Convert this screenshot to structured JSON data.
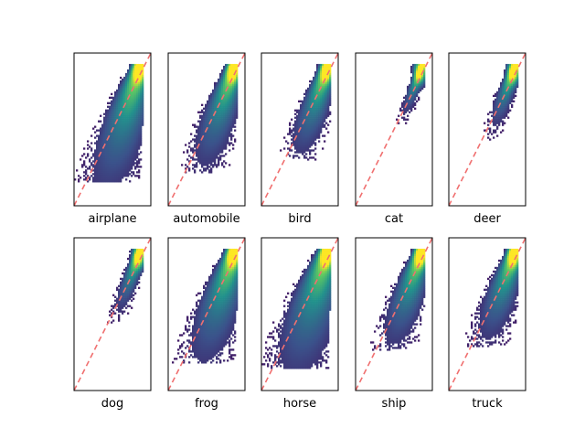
{
  "chart_data": {
    "type": "heatmap",
    "layout": {
      "rows": 2,
      "cols": 5
    },
    "axes_ticks": "none",
    "diagonal": {
      "style": "dashed",
      "color": "#f07070"
    },
    "colormap": [
      "#440154",
      "#3b528b",
      "#21918c",
      "#5ec962",
      "#fde725"
    ],
    "panels": [
      {
        "label": "airplane",
        "spread": 1.0,
        "width": 0.34,
        "tail": 0.72,
        "tilt": 0.55
      },
      {
        "label": "automobile",
        "spread": 0.8,
        "width": 0.3,
        "tail": 0.66,
        "tilt": 0.6
      },
      {
        "label": "bird",
        "spread": 0.7,
        "width": 0.28,
        "tail": 0.58,
        "tilt": 0.62
      },
      {
        "label": "cat",
        "spread": 0.35,
        "width": 0.16,
        "tail": 0.35,
        "tilt": 0.7
      },
      {
        "label": "deer",
        "spread": 0.45,
        "width": 0.2,
        "tail": 0.45,
        "tilt": 0.68
      },
      {
        "label": "dog",
        "spread": 0.45,
        "width": 0.2,
        "tail": 0.45,
        "tilt": 0.7
      },
      {
        "label": "frog",
        "spread": 0.9,
        "width": 0.34,
        "tail": 0.7,
        "tilt": 0.55
      },
      {
        "label": "horse",
        "spread": 1.0,
        "width": 0.38,
        "tail": 0.74,
        "tilt": 0.52
      },
      {
        "label": "ship",
        "spread": 0.75,
        "width": 0.3,
        "tail": 0.62,
        "tilt": 0.6
      },
      {
        "label": "truck",
        "spread": 0.7,
        "width": 0.3,
        "tail": 0.6,
        "tilt": 0.62
      }
    ]
  }
}
